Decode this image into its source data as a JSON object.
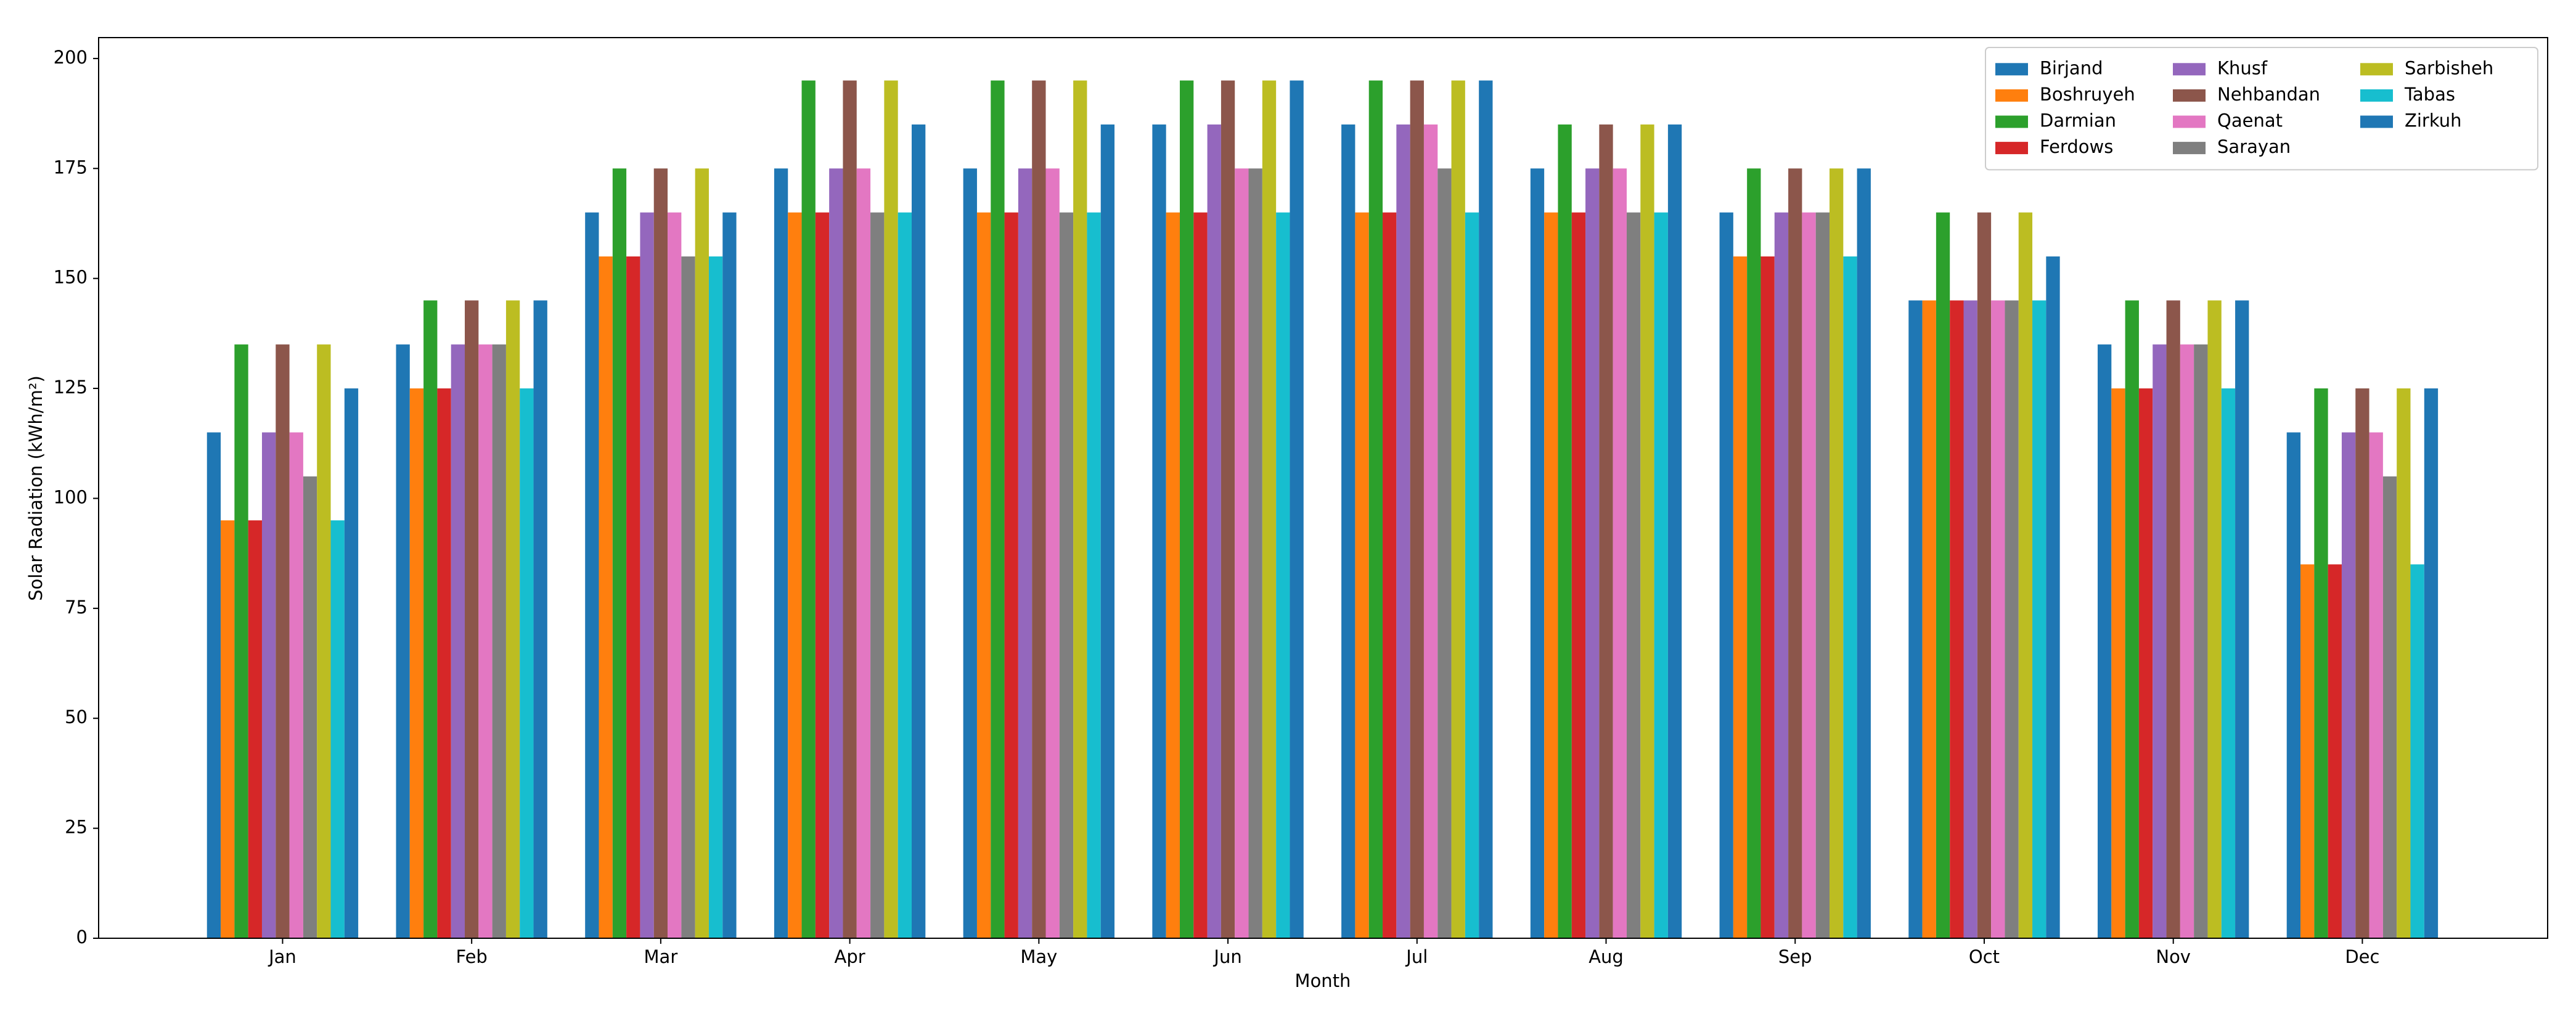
{
  "chart_data": {
    "type": "bar",
    "y_label": "Solar Radiation (kWh/m²)",
    "x_label": "Month",
    "categories": [
      "Jan",
      "Feb",
      "Mar",
      "Apr",
      "May",
      "Jun",
      "Jul",
      "Aug",
      "Sep",
      "Oct",
      "Nov",
      "Dec"
    ],
    "series": [
      {
        "name": "Birjand",
        "color": "#1f77b4",
        "values": [
          115,
          135,
          165,
          175,
          175,
          185,
          185,
          175,
          165,
          145,
          135,
          115
        ]
      },
      {
        "name": "Boshruyeh",
        "color": "#ff7f0e",
        "values": [
          95,
          125,
          155,
          165,
          165,
          165,
          165,
          165,
          155,
          145,
          125,
          85
        ]
      },
      {
        "name": "Darmian",
        "color": "#2ca02c",
        "values": [
          135,
          145,
          175,
          195,
          195,
          195,
          195,
          185,
          175,
          165,
          145,
          125
        ]
      },
      {
        "name": "Ferdows",
        "color": "#d62728",
        "values": [
          95,
          125,
          155,
          165,
          165,
          165,
          165,
          165,
          155,
          145,
          125,
          85
        ]
      },
      {
        "name": "Khusf",
        "color": "#9467bd",
        "values": [
          115,
          135,
          165,
          175,
          175,
          185,
          185,
          175,
          165,
          145,
          135,
          115
        ]
      },
      {
        "name": "Nehbandan",
        "color": "#8c564b",
        "values": [
          135,
          145,
          175,
          195,
          195,
          195,
          195,
          185,
          175,
          165,
          145,
          125
        ]
      },
      {
        "name": "Qaenat",
        "color": "#e377c2",
        "values": [
          115,
          135,
          165,
          175,
          175,
          175,
          185,
          175,
          165,
          145,
          135,
          115
        ]
      },
      {
        "name": "Sarayan",
        "color": "#7f7f7f",
        "values": [
          105,
          135,
          155,
          165,
          165,
          175,
          175,
          165,
          165,
          145,
          135,
          105
        ]
      },
      {
        "name": "Sarbisheh",
        "color": "#bcbd22",
        "values": [
          135,
          145,
          175,
          195,
          195,
          195,
          195,
          185,
          175,
          165,
          145,
          125
        ]
      },
      {
        "name": "Tabas",
        "color": "#17becf",
        "values": [
          95,
          125,
          155,
          165,
          165,
          165,
          165,
          165,
          155,
          145,
          125,
          85
        ]
      },
      {
        "name": "Zirkuh",
        "color": "#1f77b4",
        "values": [
          125,
          145,
          165,
          185,
          185,
          195,
          195,
          185,
          175,
          155,
          145,
          125
        ]
      }
    ],
    "ylim": [
      0,
      204.75
    ],
    "yticks": [
      0,
      25,
      50,
      75,
      100,
      125,
      150,
      175,
      200
    ],
    "legend": "upper right",
    "legend_columns": 3
  }
}
